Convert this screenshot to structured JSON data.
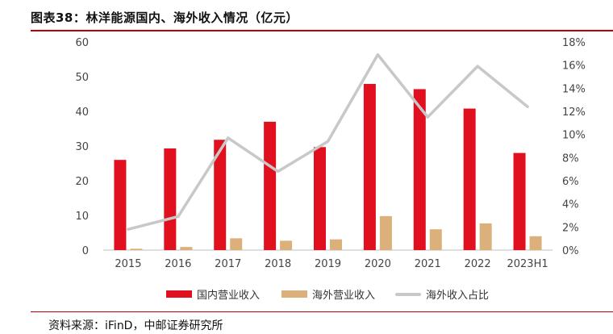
{
  "header": {
    "title": "图表38：林洋能源国内、海外收入情况（亿元）"
  },
  "footer": {
    "source": "资料来源：iFinD，中邮证券研究所"
  },
  "colors": {
    "domestic": "#e0101e",
    "overseas": "#dbb07a",
    "share": "#c8c8c8",
    "axis": "#bfbfbf",
    "accent": "#c00000"
  },
  "chart_data": {
    "type": "bar",
    "title": "图表38：林洋能源国内、海外收入情况（亿元）",
    "categories": [
      "2015",
      "2016",
      "2017",
      "2018",
      "2019",
      "2020",
      "2021",
      "2022",
      "2023H1"
    ],
    "series": [
      {
        "name": "国内营业收入",
        "type": "bar",
        "axis": "left",
        "values": [
          26.0,
          29.3,
          31.8,
          37.0,
          29.7,
          47.9,
          46.4,
          40.8,
          28.0
        ]
      },
      {
        "name": "海外营业收入",
        "type": "bar",
        "axis": "left",
        "values": [
          0.4,
          0.9,
          3.4,
          2.7,
          3.1,
          9.8,
          6.0,
          7.7,
          4.0
        ]
      },
      {
        "name": "海外收入占比",
        "type": "line",
        "axis": "right",
        "values": [
          1.8,
          2.9,
          9.7,
          6.8,
          9.4,
          16.9,
          11.5,
          15.9,
          12.4
        ]
      }
    ],
    "left_axis": {
      "ylim": [
        0,
        60
      ],
      "ticks": [
        "0",
        "10",
        "20",
        "30",
        "40",
        "50",
        "60"
      ]
    },
    "right_axis": {
      "ylim": [
        0,
        18
      ],
      "ticks": [
        "0%",
        "2%",
        "4%",
        "6%",
        "8%",
        "10%",
        "12%",
        "14%",
        "16%",
        "18%"
      ]
    },
    "grid": false,
    "legend_position": "bottom"
  }
}
